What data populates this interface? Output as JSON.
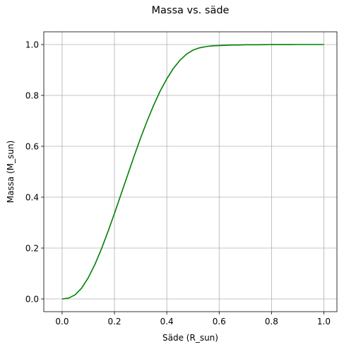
{
  "chart_data": {
    "type": "line",
    "title": "Massa vs. säde",
    "xlabel": "Säde (R_sun)",
    "ylabel": "Massa (M_sun)",
    "xlim": [
      -0.07,
      1.05
    ],
    "ylim": [
      -0.05,
      1.05
    ],
    "grid": true,
    "x_ticks": [
      0.0,
      0.2,
      0.4,
      0.6,
      0.8,
      1.0
    ],
    "x_tick_labels": [
      "0.0",
      "0.2",
      "0.4",
      "0.6",
      "0.8",
      "1.0"
    ],
    "y_ticks": [
      0.0,
      0.2,
      0.4,
      0.6,
      0.8,
      1.0
    ],
    "y_tick_labels": [
      "0.0",
      "0.2",
      "0.4",
      "0.6",
      "0.8",
      "1.0"
    ],
    "series": [
      {
        "color": "#008000",
        "x": [
          0.0,
          0.025,
          0.05,
          0.075,
          0.1,
          0.125,
          0.15,
          0.175,
          0.2,
          0.225,
          0.25,
          0.275,
          0.3,
          0.325,
          0.35,
          0.375,
          0.4,
          0.425,
          0.45,
          0.475,
          0.5,
          0.525,
          0.55,
          0.575,
          0.6,
          0.625,
          0.65,
          0.675,
          0.7,
          0.725,
          0.75,
          0.775,
          0.8,
          0.825,
          0.85,
          0.875,
          0.9,
          0.925,
          0.95,
          0.975,
          1.0
        ],
        "y": [
          0.0,
          0.0033,
          0.0165,
          0.0433,
          0.0836,
          0.135,
          0.196,
          0.264,
          0.336,
          0.411,
          0.486,
          0.561,
          0.633,
          0.7,
          0.762,
          0.818,
          0.865,
          0.906,
          0.938,
          0.962,
          0.978,
          0.987,
          0.992,
          0.995,
          0.996,
          0.997,
          0.998,
          0.998,
          0.999,
          0.999,
          0.999,
          0.9995,
          0.9997,
          0.9998,
          0.9999,
          0.9999,
          1.0,
          1.0,
          1.0,
          1.0,
          1.0
        ]
      }
    ]
  }
}
